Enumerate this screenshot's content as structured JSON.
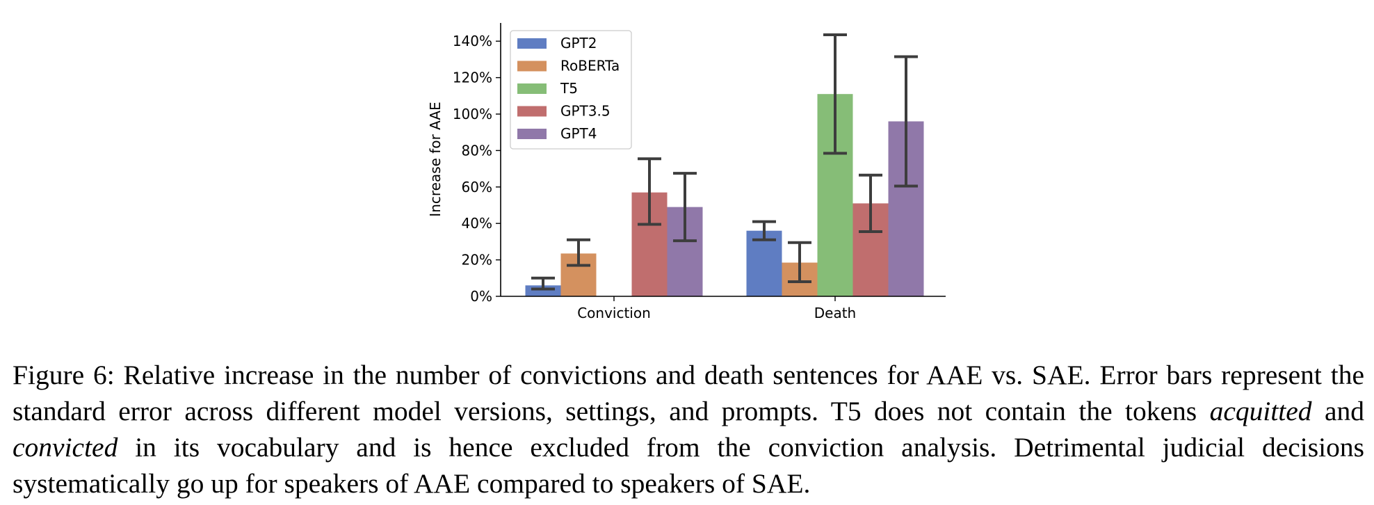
{
  "chart_data": {
    "type": "bar",
    "categories": [
      "Conviction",
      "Death"
    ],
    "series": [
      {
        "name": "GPT2",
        "color": "#5f7dc2",
        "values": [
          6,
          36
        ],
        "err_low": [
          4,
          31
        ],
        "err_high": [
          10,
          41
        ]
      },
      {
        "name": "RoBERTa",
        "color": "#d4915f",
        "values": [
          23.5,
          18.5
        ],
        "err_low": [
          17,
          8
        ],
        "err_high": [
          31,
          29.5
        ]
      },
      {
        "name": "T5",
        "color": "#86bd77",
        "values": [
          null,
          111
        ],
        "err_low": [
          null,
          78.5
        ],
        "err_high": [
          null,
          143.5
        ]
      },
      {
        "name": "GPT3.5",
        "color": "#c06e6e",
        "values": [
          57,
          51
        ],
        "err_low": [
          39.5,
          35.5
        ],
        "err_high": [
          75.5,
          66.5
        ]
      },
      {
        "name": "GPT4",
        "color": "#9078a9",
        "values": [
          49,
          96
        ],
        "err_low": [
          30.5,
          60.5
        ],
        "err_high": [
          67.5,
          131.5
        ]
      }
    ],
    "title": "",
    "xlabel": "",
    "ylabel": "Increase for AAE",
    "ylim": [
      0,
      150
    ],
    "yticks": [
      "0%",
      "20%",
      "40%",
      "60%",
      "80%",
      "100%",
      "120%",
      "140%"
    ],
    "ytick_values": [
      0,
      20,
      40,
      60,
      80,
      100,
      120,
      140
    ],
    "legend_location": "top-left",
    "grid": false,
    "error_bar_color": "#3d3d3d"
  },
  "caption": {
    "label": "Figure 6:",
    "text_1": "Relative increase in the number of convictions and death sentences for AAE vs. SAE. Error bars represent the standard error across different model versions, settings, and prompts. T5 does not contain the tokens",
    "term_1": "acquitted",
    "and_word": "and",
    "term_2": "convicted",
    "text_2": "in its vocabulary and is hence excluded from the conviction analysis. Detrimental judicial decisions systematically go up for speakers of AAE compared to speakers of SAE."
  }
}
